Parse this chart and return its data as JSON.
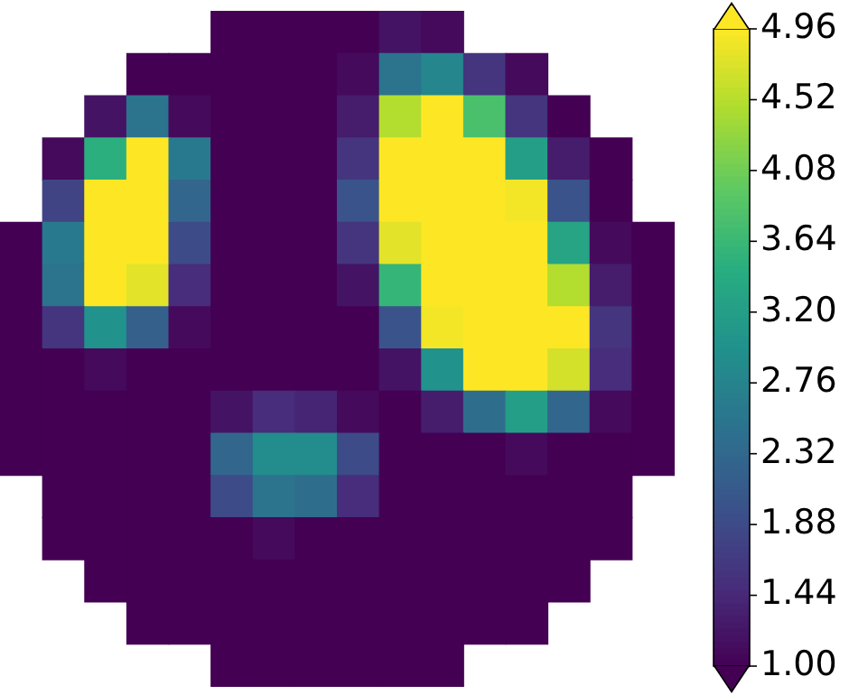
{
  "chart_data": {
    "type": "heatmap",
    "categories": [
      null,
      null,
      null,
      null,
      null,
      null,
      null,
      null,
      null,
      null,
      null,
      null,
      null,
      null,
      null,
      null
    ],
    "y_categories": [
      null,
      null,
      null,
      null,
      null,
      null,
      null,
      null,
      null,
      null,
      null,
      null,
      null,
      null,
      null,
      null
    ],
    "cells": [
      [
        null,
        null,
        null,
        null,
        null,
        1.0,
        1.0,
        1.0,
        1.0,
        1.2,
        1.1,
        null,
        null,
        null,
        null,
        null
      ],
      [
        null,
        null,
        null,
        1.0,
        1.0,
        1.0,
        1.0,
        1.0,
        1.1,
        2.5,
        2.8,
        1.6,
        1.1,
        null,
        null,
        null
      ],
      [
        null,
        null,
        1.2,
        2.5,
        1.1,
        1.0,
        1.0,
        1.0,
        1.3,
        4.5,
        4.96,
        3.8,
        1.6,
        1.0,
        null,
        null
      ],
      [
        null,
        1.1,
        3.5,
        4.96,
        2.6,
        1.0,
        1.0,
        1.0,
        1.6,
        4.96,
        4.96,
        4.96,
        3.2,
        1.3,
        1.0,
        null
      ],
      [
        null,
        1.8,
        4.96,
        4.96,
        2.3,
        1.0,
        1.0,
        1.0,
        2.0,
        4.96,
        4.96,
        4.96,
        4.9,
        2.0,
        1.0,
        null
      ],
      [
        1.0,
        2.6,
        4.96,
        4.96,
        1.9,
        1.0,
        1.0,
        1.0,
        1.6,
        4.8,
        4.96,
        4.96,
        4.96,
        3.3,
        1.1,
        1.0
      ],
      [
        1.0,
        2.5,
        4.96,
        4.8,
        1.5,
        1.0,
        1.0,
        1.0,
        1.2,
        3.6,
        4.96,
        4.96,
        4.96,
        4.5,
        1.3,
        1.0
      ],
      [
        1.0,
        1.6,
        3.0,
        2.2,
        1.1,
        1.0,
        1.0,
        1.0,
        1.0,
        2.0,
        4.9,
        4.96,
        4.96,
        4.96,
        1.6,
        1.0
      ],
      [
        1.0,
        1.0,
        1.1,
        1.0,
        1.0,
        1.0,
        1.0,
        1.0,
        1.0,
        1.2,
        3.0,
        4.96,
        4.96,
        4.7,
        1.5,
        1.0
      ],
      [
        1.0,
        1.0,
        1.0,
        1.0,
        1.0,
        1.2,
        1.5,
        1.4,
        1.1,
        1.0,
        1.3,
        2.4,
        3.2,
        2.3,
        1.1,
        1.0
      ],
      [
        1.0,
        1.0,
        1.0,
        1.0,
        1.0,
        2.3,
        2.9,
        2.9,
        1.9,
        1.0,
        1.0,
        1.0,
        1.1,
        1.0,
        1.0,
        1.0
      ],
      [
        null,
        1.0,
        1.0,
        1.0,
        1.0,
        1.9,
        2.5,
        2.4,
        1.5,
        1.0,
        1.0,
        1.0,
        1.0,
        1.0,
        1.0,
        null
      ],
      [
        null,
        1.0,
        1.0,
        1.0,
        1.0,
        1.0,
        1.1,
        1.0,
        1.0,
        1.0,
        1.0,
        1.0,
        1.0,
        1.0,
        1.0,
        null
      ],
      [
        null,
        null,
        1.0,
        1.0,
        1.0,
        1.0,
        1.0,
        1.0,
        1.0,
        1.0,
        1.0,
        1.0,
        1.0,
        1.0,
        null,
        null
      ],
      [
        null,
        null,
        null,
        1.0,
        1.0,
        1.0,
        1.0,
        1.0,
        1.0,
        1.0,
        1.0,
        1.0,
        1.0,
        null,
        null,
        null
      ],
      [
        null,
        null,
        null,
        null,
        null,
        1.0,
        1.0,
        1.0,
        1.0,
        1.0,
        1.0,
        null,
        null,
        null,
        null,
        null
      ]
    ],
    "clim": [
      1.0,
      4.96
    ],
    "cticks": [
      {
        "value": 1.0,
        "label": "1.00"
      },
      1.44,
      1.88,
      2.32,
      2.76,
      {
        "value": 3.2,
        "label": "3.20"
      },
      3.64,
      4.08,
      4.52,
      4.96
    ]
  }
}
